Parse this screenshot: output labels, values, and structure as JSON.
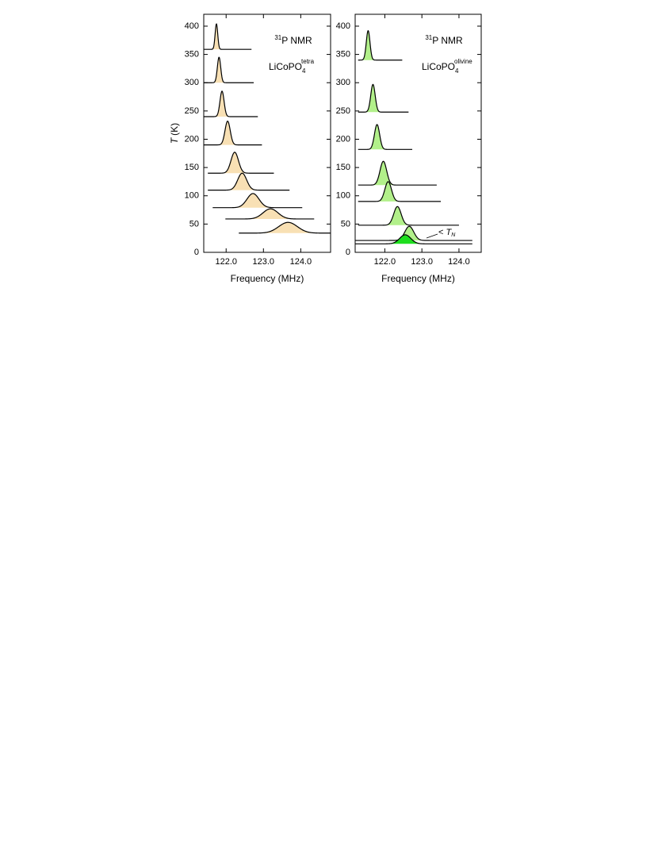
{
  "chart_data": [
    {
      "type": "spectrum",
      "x_label": "Frequency (MHz)",
      "y_label_symbol": "T",
      "y_label_unit": "(K)",
      "title_isotope": "31",
      "title_text": "P NMR",
      "compound_base": "LiCoPO",
      "compound_subscript": "4",
      "compound_superscript": "tetra",
      "color": "#f8e0b4",
      "xlim": [
        121.4,
        124.8
      ],
      "ylim": [
        0,
        421
      ],
      "xticks": [
        {
          "value": 122,
          "label": "122.0"
        },
        {
          "value": 123,
          "label": "123.0"
        },
        {
          "value": 124,
          "label": "124.0"
        }
      ],
      "yticks": [
        0,
        50,
        100,
        150,
        200,
        250,
        300,
        350,
        400
      ],
      "spectra": [
        {
          "baseline": 359,
          "center": 121.74,
          "height": 45,
          "width": 0.035,
          "start": 121.4,
          "end": 122.68
        },
        {
          "baseline": 300,
          "center": 121.81,
          "height": 45,
          "width": 0.045,
          "start": 121.4,
          "end": 122.74
        },
        {
          "baseline": 240,
          "center": 121.89,
          "height": 45,
          "width": 0.055,
          "start": 121.4,
          "end": 122.85
        },
        {
          "baseline": 190,
          "center": 122.04,
          "height": 42,
          "width": 0.07,
          "start": 121.4,
          "end": 122.96
        },
        {
          "baseline": 140,
          "center": 122.23,
          "height": 37,
          "width": 0.1,
          "start": 121.51,
          "end": 123.28
        },
        {
          "baseline": 110,
          "center": 122.43,
          "height": 30,
          "width": 0.12,
          "start": 121.51,
          "end": 123.7
        },
        {
          "baseline": 79,
          "center": 122.72,
          "height": 25,
          "width": 0.16,
          "start": 121.64,
          "end": 124.04
        },
        {
          "baseline": 59,
          "center": 123.19,
          "height": 18,
          "width": 0.2,
          "start": 121.98,
          "end": 124.36
        },
        {
          "baseline": 34,
          "center": 123.66,
          "height": 19,
          "width": 0.25,
          "start": 122.34,
          "end": 124.8
        }
      ]
    },
    {
      "type": "spectrum",
      "x_label": "Frequency (MHz)",
      "title_isotope": "31",
      "title_text": "P NMR",
      "compound_base": "LiCoPO",
      "compound_subscript": "4",
      "compound_superscript": "olivine",
      "color": "#b2f08a",
      "annotation_symbol": "< ",
      "annotation_variable": "T",
      "annotation_subscript": "N",
      "xlim": [
        121.2,
        124.6
      ],
      "ylim": [
        0,
        421
      ],
      "xticks": [
        {
          "value": 122,
          "label": "122.0"
        },
        {
          "value": 123,
          "label": "123.0"
        },
        {
          "value": 124,
          "label": "124.0"
        }
      ],
      "yticks": [
        0,
        50,
        100,
        150,
        200,
        250,
        300,
        350,
        400
      ],
      "spectra": [
        {
          "baseline": 340,
          "center": 121.55,
          "height": 52,
          "width": 0.05,
          "start": 121.28,
          "end": 122.47
        },
        {
          "baseline": 248,
          "center": 121.68,
          "height": 49,
          "width": 0.06,
          "start": 121.28,
          "end": 122.64
        },
        {
          "baseline": 182,
          "center": 121.79,
          "height": 44,
          "width": 0.07,
          "start": 121.28,
          "end": 122.74
        },
        {
          "baseline": 119,
          "center": 121.96,
          "height": 42,
          "width": 0.09,
          "start": 121.28,
          "end": 123.4
        },
        {
          "baseline": 90,
          "center": 122.09,
          "height": 35,
          "width": 0.09,
          "start": 121.28,
          "end": 123.51
        },
        {
          "baseline": 48,
          "center": 122.34,
          "height": 33,
          "width": 0.1,
          "start": 121.28,
          "end": 124.0
        },
        {
          "baseline": 21,
          "center": 122.66,
          "height": 25,
          "width": 0.12,
          "start": 121.19,
          "end": 124.36
        },
        {
          "baseline": 15,
          "center": 122.55,
          "height": 16,
          "width": 0.15,
          "start": 121.19,
          "end": 124.36,
          "color": "#1ede1e"
        }
      ]
    }
  ]
}
